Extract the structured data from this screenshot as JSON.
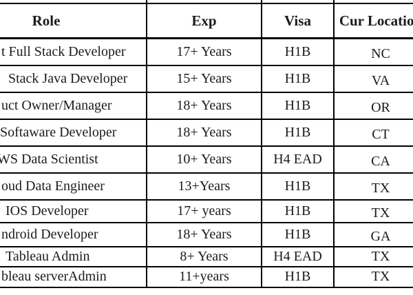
{
  "table": {
    "headers": {
      "role": "Role",
      "exp": "Exp",
      "visa": "Visa",
      "location": "Cur Location"
    },
    "rows": [
      {
        "role": "t Full Stack Developer",
        "exp": "17+ Years",
        "visa": "H1B",
        "location": "NC"
      },
      {
        "role": "Stack Java Developer",
        "exp": "15+ Years",
        "visa": "H1B",
        "location": "VA"
      },
      {
        "role": "uct Owner/Manager",
        "exp": "18+ Years",
        "visa": "H1B",
        "location": "OR"
      },
      {
        "role": "Softaware Developer",
        "exp": "18+ Years",
        "visa": "H1B",
        "location": "CT"
      },
      {
        "role": "WS Data Scientist",
        "exp": "10+ Years",
        "visa": "H4 EAD",
        "location": "CA"
      },
      {
        "role": "oud Data Engineer",
        "exp": "13+Years",
        "visa": "H1B",
        "location": "TX"
      },
      {
        "role": "IOS Developer",
        "exp": "17+ years",
        "visa": "H1B",
        "location": "TX"
      },
      {
        "role": "ndroid Developer",
        "exp": "18+ Years",
        "visa": "H1B",
        "location": "GA"
      },
      {
        "role": "Tableau Admin",
        "exp": "8+ Years",
        "visa": "H4 EAD",
        "location": "TX"
      },
      {
        "role": "bleau serverAdmin",
        "exp": "11+years",
        "visa": "H1B",
        "location": "TX"
      }
    ],
    "colors": {
      "border": "#000000",
      "text": "#1b1b1b",
      "background": "#ffffff"
    }
  }
}
